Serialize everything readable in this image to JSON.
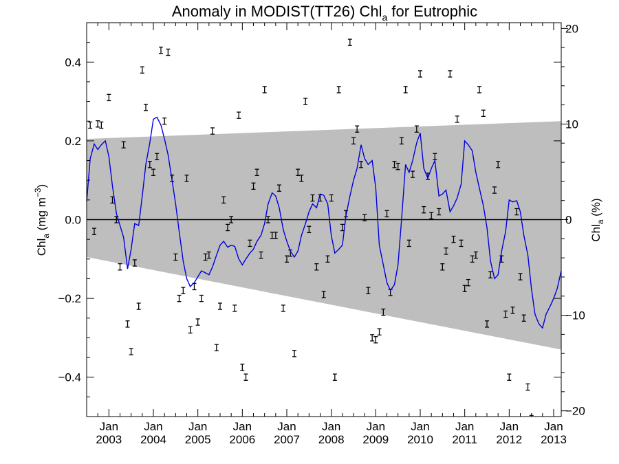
{
  "chart_data": {
    "type": "line",
    "title_main": "Anomaly in MODIST(TT26) Chl",
    "title_sub": "a",
    "title_tail": " for Eutrophic",
    "ylabel_left": {
      "main": "Chl",
      "sub": "a",
      "rest": " (mg m",
      "sup": "−3",
      "close": ")"
    },
    "ylabel_right": {
      "main": "Chl",
      "sub": "a",
      "rest": " (%)"
    },
    "xlim": [
      2002.5,
      2013.17
    ],
    "ylim_left": [
      -0.5,
      0.5
    ],
    "ylim_right": [
      -20.6,
      20.6
    ],
    "grid": false,
    "yticks_left": [
      -0.4,
      -0.2,
      0.0,
      0.2,
      0.4
    ],
    "yticks_left_labels": [
      "−0.4",
      "−0.2",
      "0.0",
      "0.2",
      "0.4"
    ],
    "yticks_right": [
      -20,
      -10,
      0,
      10,
      20
    ],
    "yticks_right_labels": [
      "−20",
      "−10",
      "0",
      "10",
      "20"
    ],
    "xticks": [
      {
        "x": 2003.0,
        "month": "Jan",
        "year": "2003"
      },
      {
        "x": 2004.0,
        "month": "Jan",
        "year": "2004"
      },
      {
        "x": 2005.0,
        "month": "Jan",
        "year": "2005"
      },
      {
        "x": 2006.0,
        "month": "Jan",
        "year": "2006"
      },
      {
        "x": 2007.0,
        "month": "Jan",
        "year": "2007"
      },
      {
        "x": 2008.0,
        "month": "Jan",
        "year": "2008"
      },
      {
        "x": 2009.0,
        "month": "Jan",
        "year": "2009"
      },
      {
        "x": 2010.0,
        "month": "Jan",
        "year": "2010"
      },
      {
        "x": 2011.0,
        "month": "Jan",
        "year": "2011"
      },
      {
        "x": 2012.0,
        "month": "Jan",
        "year": "2012"
      },
      {
        "x": 2013.0,
        "month": "Jan",
        "year": "2013"
      }
    ],
    "zero_line": 0.0,
    "band": {
      "color": "#bebebe",
      "upper": [
        [
          2002.5,
          0.205
        ],
        [
          2013.17,
          0.25
        ]
      ],
      "lower": [
        [
          2002.5,
          -0.095
        ],
        [
          2013.17,
          -0.33
        ]
      ]
    },
    "series": [
      {
        "color": "#0000dd",
        "points": [
          [
            2002.5,
            0.045
          ],
          [
            2002.58,
            0.155
          ],
          [
            2002.67,
            0.192
          ],
          [
            2002.75,
            0.178
          ],
          [
            2002.83,
            0.19
          ],
          [
            2002.92,
            0.2
          ],
          [
            2003.0,
            0.16
          ],
          [
            2003.08,
            0.085
          ],
          [
            2003.17,
            0.015
          ],
          [
            2003.25,
            -0.015
          ],
          [
            2003.33,
            -0.045
          ],
          [
            2003.42,
            -0.125
          ],
          [
            2003.5,
            -0.075
          ],
          [
            2003.58,
            -0.01
          ],
          [
            2003.67,
            -0.015
          ],
          [
            2003.75,
            0.06
          ],
          [
            2003.83,
            0.14
          ],
          [
            2003.92,
            0.195
          ],
          [
            2004.0,
            0.255
          ],
          [
            2004.08,
            0.26
          ],
          [
            2004.17,
            0.24
          ],
          [
            2004.25,
            0.205
          ],
          [
            2004.33,
            0.165
          ],
          [
            2004.42,
            0.1
          ],
          [
            2004.5,
            0.04
          ],
          [
            2004.58,
            -0.03
          ],
          [
            2004.67,
            -0.105
          ],
          [
            2004.75,
            -0.15
          ],
          [
            2004.83,
            -0.17
          ],
          [
            2004.92,
            -0.16
          ],
          [
            2005.0,
            -0.145
          ],
          [
            2005.08,
            -0.13
          ],
          [
            2005.17,
            -0.135
          ],
          [
            2005.25,
            -0.14
          ],
          [
            2005.33,
            -0.12
          ],
          [
            2005.42,
            -0.09
          ],
          [
            2005.5,
            -0.065
          ],
          [
            2005.58,
            -0.055
          ],
          [
            2005.67,
            -0.07
          ],
          [
            2005.75,
            -0.065
          ],
          [
            2005.83,
            -0.068
          ],
          [
            2005.92,
            -0.1
          ],
          [
            2006.0,
            -0.115
          ],
          [
            2006.08,
            -0.1
          ],
          [
            2006.17,
            -0.085
          ],
          [
            2006.25,
            -0.075
          ],
          [
            2006.33,
            -0.055
          ],
          [
            2006.42,
            -0.04
          ],
          [
            2006.5,
            -0.01
          ],
          [
            2006.58,
            0.04
          ],
          [
            2006.67,
            0.068
          ],
          [
            2006.75,
            0.06
          ],
          [
            2006.83,
            0.03
          ],
          [
            2006.92,
            -0.025
          ],
          [
            2007.0,
            -0.055
          ],
          [
            2007.08,
            -0.08
          ],
          [
            2007.17,
            -0.095
          ],
          [
            2007.25,
            -0.08
          ],
          [
            2007.33,
            -0.04
          ],
          [
            2007.42,
            -0.01
          ],
          [
            2007.5,
            0.02
          ],
          [
            2007.58,
            0.04
          ],
          [
            2007.67,
            0.03
          ],
          [
            2007.75,
            0.065
          ],
          [
            2007.83,
            0.062
          ],
          [
            2007.92,
            0.04
          ],
          [
            2008.0,
            -0.04
          ],
          [
            2008.08,
            -0.085
          ],
          [
            2008.17,
            -0.075
          ],
          [
            2008.25,
            -0.065
          ],
          [
            2008.33,
            0.01
          ],
          [
            2008.42,
            0.06
          ],
          [
            2008.5,
            0.1
          ],
          [
            2008.58,
            0.13
          ],
          [
            2008.67,
            0.19
          ],
          [
            2008.75,
            0.155
          ],
          [
            2008.83,
            0.14
          ],
          [
            2008.92,
            0.15
          ],
          [
            2009.0,
            0.08
          ],
          [
            2009.08,
            -0.065
          ],
          [
            2009.17,
            -0.115
          ],
          [
            2009.25,
            -0.16
          ],
          [
            2009.33,
            -0.18
          ],
          [
            2009.42,
            -0.165
          ],
          [
            2009.5,
            -0.115
          ],
          [
            2009.58,
            0.0
          ],
          [
            2009.67,
            0.14
          ],
          [
            2009.75,
            0.12
          ],
          [
            2009.83,
            0.15
          ],
          [
            2009.92,
            0.195
          ],
          [
            2010.0,
            0.22
          ],
          [
            2010.08,
            0.13
          ],
          [
            2010.17,
            0.105
          ],
          [
            2010.25,
            0.13
          ],
          [
            2010.33,
            0.15
          ],
          [
            2010.42,
            0.06
          ],
          [
            2010.5,
            0.065
          ],
          [
            2010.58,
            0.075
          ],
          [
            2010.67,
            0.02
          ],
          [
            2010.75,
            0.035
          ],
          [
            2010.83,
            0.055
          ],
          [
            2010.92,
            0.09
          ],
          [
            2011.0,
            0.2
          ],
          [
            2011.08,
            0.19
          ],
          [
            2011.17,
            0.175
          ],
          [
            2011.25,
            0.12
          ],
          [
            2011.33,
            0.08
          ],
          [
            2011.42,
            0.035
          ],
          [
            2011.5,
            -0.02
          ],
          [
            2011.58,
            -0.105
          ],
          [
            2011.67,
            -0.15
          ],
          [
            2011.75,
            -0.14
          ],
          [
            2011.83,
            -0.08
          ],
          [
            2011.92,
            -0.03
          ],
          [
            2012.0,
            0.05
          ],
          [
            2012.08,
            0.045
          ],
          [
            2012.17,
            0.048
          ],
          [
            2012.25,
            0.02
          ],
          [
            2012.33,
            -0.04
          ],
          [
            2012.42,
            -0.09
          ],
          [
            2012.5,
            -0.175
          ],
          [
            2012.58,
            -0.24
          ],
          [
            2012.67,
            -0.265
          ],
          [
            2012.75,
            -0.275
          ],
          [
            2012.83,
            -0.24
          ],
          [
            2012.92,
            -0.22
          ],
          [
            2013.0,
            -0.2
          ],
          [
            2013.08,
            -0.175
          ],
          [
            2013.17,
            -0.13
          ]
        ]
      }
    ],
    "errorbars": {
      "color": "#000000",
      "half_height": 0.008,
      "points": [
        [
          2002.58,
          0.24
        ],
        [
          2002.67,
          -0.03
        ],
        [
          2002.75,
          0.243
        ],
        [
          2002.83,
          0.24
        ],
        [
          2003.0,
          0.31
        ],
        [
          2003.08,
          0.05
        ],
        [
          2003.17,
          0.0
        ],
        [
          2003.25,
          -0.12
        ],
        [
          2003.33,
          0.19
        ],
        [
          2003.42,
          -0.265
        ],
        [
          2003.5,
          -0.335
        ],
        [
          2003.58,
          -0.11
        ],
        [
          2003.67,
          -0.22
        ],
        [
          2003.75,
          0.38
        ],
        [
          2003.83,
          0.285
        ],
        [
          2003.92,
          0.14
        ],
        [
          2004.0,
          0.12
        ],
        [
          2004.08,
          0.16
        ],
        [
          2004.17,
          0.43
        ],
        [
          2004.25,
          0.25
        ],
        [
          2004.33,
          0.425
        ],
        [
          2004.42,
          0.105
        ],
        [
          2004.5,
          -0.095
        ],
        [
          2004.58,
          -0.2
        ],
        [
          2004.67,
          -0.18
        ],
        [
          2004.75,
          0.105
        ],
        [
          2004.83,
          -0.28
        ],
        [
          2004.92,
          -0.17
        ],
        [
          2005.0,
          -0.26
        ],
        [
          2005.08,
          -0.2
        ],
        [
          2005.17,
          -0.095
        ],
        [
          2005.25,
          -0.09
        ],
        [
          2005.33,
          0.225
        ],
        [
          2005.42,
          -0.325
        ],
        [
          2005.5,
          -0.22
        ],
        [
          2005.58,
          0.05
        ],
        [
          2005.67,
          -0.02
        ],
        [
          2005.75,
          0.0
        ],
        [
          2005.83,
          -0.225
        ],
        [
          2005.92,
          0.265
        ],
        [
          2006.0,
          -0.375
        ],
        [
          2006.08,
          -0.4
        ],
        [
          2006.17,
          -0.06
        ],
        [
          2006.25,
          0.085
        ],
        [
          2006.33,
          0.12
        ],
        [
          2006.42,
          -0.09
        ],
        [
          2006.5,
          0.33
        ],
        [
          2006.58,
          0.0
        ],
        [
          2006.67,
          -0.04
        ],
        [
          2006.75,
          -0.04
        ],
        [
          2006.83,
          0.08
        ],
        [
          2006.92,
          -0.225
        ],
        [
          2007.0,
          -0.1
        ],
        [
          2007.08,
          -0.085
        ],
        [
          2007.17,
          -0.34
        ],
        [
          2007.25,
          0.12
        ],
        [
          2007.33,
          0.105
        ],
        [
          2007.42,
          0.3
        ],
        [
          2007.5,
          -0.025
        ],
        [
          2007.58,
          0.055
        ],
        [
          2007.67,
          -0.12
        ],
        [
          2007.75,
          0.055
        ],
        [
          2007.83,
          -0.19
        ],
        [
          2007.92,
          -0.1
        ],
        [
          2008.0,
          0.055
        ],
        [
          2008.08,
          -0.4
        ],
        [
          2008.17,
          0.33
        ],
        [
          2008.25,
          -0.02
        ],
        [
          2008.33,
          0.015
        ],
        [
          2008.42,
          0.45
        ],
        [
          2008.5,
          0.2
        ],
        [
          2008.58,
          0.23
        ],
        [
          2008.67,
          0.14
        ],
        [
          2008.75,
          0.005
        ],
        [
          2008.83,
          -0.18
        ],
        [
          2008.92,
          -0.3
        ],
        [
          2009.0,
          -0.305
        ],
        [
          2009.08,
          -0.285
        ],
        [
          2009.17,
          -0.235
        ],
        [
          2009.25,
          0.015
        ],
        [
          2009.33,
          -0.185
        ],
        [
          2009.42,
          0.14
        ],
        [
          2009.5,
          0.135
        ],
        [
          2009.58,
          0.2
        ],
        [
          2009.67,
          0.33
        ],
        [
          2009.75,
          -0.06
        ],
        [
          2009.83,
          0.115
        ],
        [
          2009.92,
          0.23
        ],
        [
          2010.0,
          0.37
        ],
        [
          2010.08,
          0.025
        ],
        [
          2010.17,
          0.11
        ],
        [
          2010.25,
          0.01
        ],
        [
          2010.33,
          0.16
        ],
        [
          2010.42,
          0.02
        ],
        [
          2010.5,
          -0.12
        ],
        [
          2010.58,
          -0.08
        ],
        [
          2010.67,
          0.37
        ],
        [
          2010.75,
          -0.05
        ],
        [
          2010.83,
          0.255
        ],
        [
          2010.92,
          -0.06
        ],
        [
          2011.0,
          -0.175
        ],
        [
          2011.08,
          -0.16
        ],
        [
          2011.17,
          -0.1
        ],
        [
          2011.25,
          -0.09
        ],
        [
          2011.33,
          0.33
        ],
        [
          2011.42,
          0.27
        ],
        [
          2011.5,
          -0.265
        ],
        [
          2011.58,
          -0.14
        ],
        [
          2011.67,
          0.075
        ],
        [
          2011.75,
          0.14
        ],
        [
          2011.83,
          -0.1
        ],
        [
          2011.92,
          -0.24
        ],
        [
          2012.0,
          -0.4
        ],
        [
          2012.08,
          -0.23
        ],
        [
          2012.17,
          0.02
        ],
        [
          2012.25,
          -0.145
        ],
        [
          2012.33,
          -0.25
        ],
        [
          2012.42,
          -0.425
        ],
        [
          2012.5,
          -0.505
        ]
      ]
    }
  }
}
